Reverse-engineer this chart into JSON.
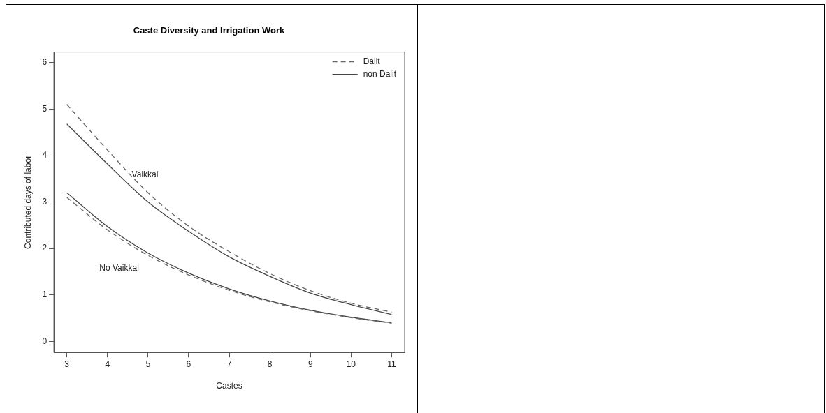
{
  "chart_data": {
    "type": "line",
    "title": "Caste Diversity and Irrigation Work",
    "xlabel": "Castes",
    "ylabel": "Contributed days of labor",
    "x": [
      3,
      4,
      5,
      6,
      7,
      8,
      9,
      10,
      11
    ],
    "series": [
      {
        "name": "Dalit",
        "color": "#666666",
        "line_style": "dashed",
        "values": [
          5.1,
          4.12,
          3.2,
          2.48,
          1.93,
          1.46,
          1.09,
          0.82,
          0.63
        ]
      },
      {
        "name": "non Dalit",
        "color": "#444444",
        "line_style": "solid",
        "values": [
          4.68,
          3.82,
          3.0,
          2.37,
          1.82,
          1.4,
          1.04,
          0.79,
          0.58
        ]
      },
      {
        "color": "#666666",
        "line_style": "dashed",
        "values": [
          3.1,
          2.4,
          1.85,
          1.43,
          1.1,
          0.85,
          0.66,
          0.51,
          0.39
        ]
      },
      {
        "color": "#444444",
        "line_style": "solid",
        "values": [
          3.2,
          2.47,
          1.9,
          1.47,
          1.13,
          0.87,
          0.67,
          0.52,
          0.4
        ]
      }
    ],
    "annotations": [
      {
        "text": "Vaikkal",
        "x": 4.6,
        "y": 3.58
      },
      "No Vaikkal"
    ],
    "xlim": [
      2.68,
      11.32
    ],
    "xticks": [
      3,
      4,
      5,
      6,
      7,
      8,
      9,
      10,
      11
    ],
    "ylim": [
      -0.24,
      6.23
    ],
    "yticks": [
      0,
      1,
      2,
      3,
      4,
      5,
      6
    ],
    "legend": "top right",
    "grid": false,
    "marker": "none"
  }
}
